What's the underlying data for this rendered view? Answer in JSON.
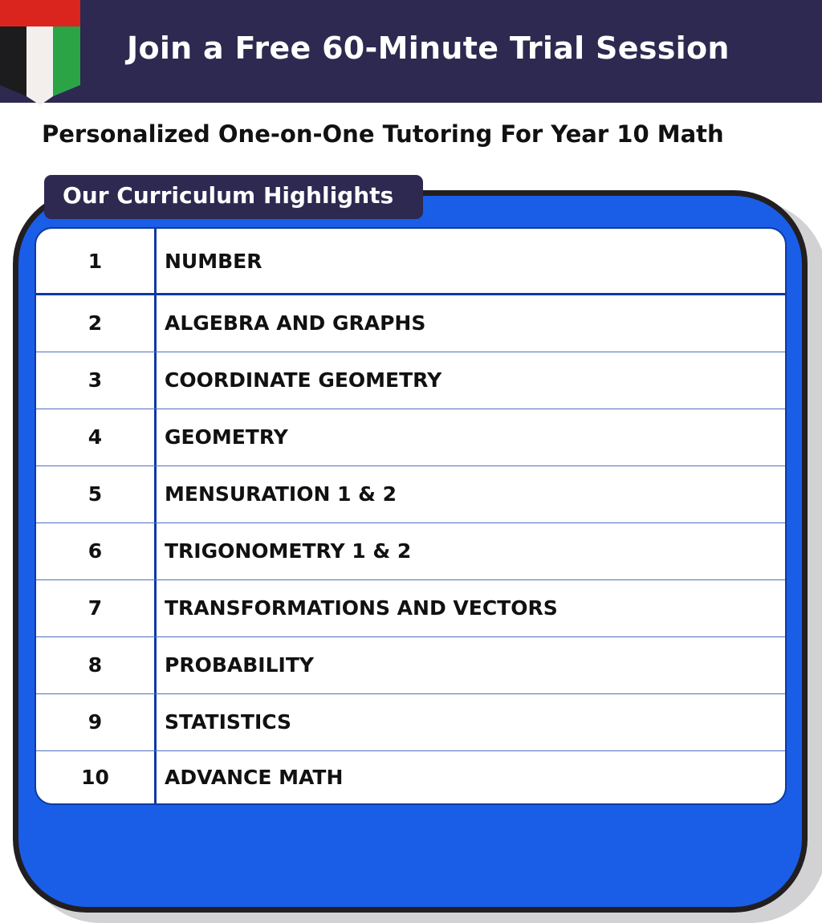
{
  "header": {
    "title": "Join a Free 60-Minute Trial Session"
  },
  "flag": {
    "icon": "uae-flag-icon",
    "colors": {
      "red": "#d9251e",
      "black": "#1c1c1e",
      "white": "#f2efec",
      "green": "#2ba446"
    }
  },
  "subtitle": "Personalized One-on-One Tutoring For Year 10 Math",
  "curriculum": {
    "tab_label": "Our Curriculum Highlights",
    "rows": [
      {
        "num": "1",
        "topic": "NUMBER"
      },
      {
        "num": "2",
        "topic": "ALGEBRA AND GRAPHS"
      },
      {
        "num": "3",
        "topic": "COORDINATE GEOMETRY"
      },
      {
        "num": "4",
        "topic": "GEOMETRY"
      },
      {
        "num": "5",
        "topic": "MENSURATION 1 & 2"
      },
      {
        "num": "6",
        "topic": "TRIGONOMETRY 1 & 2"
      },
      {
        "num": "7",
        "topic": "TRANSFORMATIONS AND VECTORS"
      },
      {
        "num": "8",
        "topic": "PROBABILITY"
      },
      {
        "num": "9",
        "topic": "STATISTICS"
      },
      {
        "num": "10",
        "topic": "ADVANCE MATH"
      }
    ]
  },
  "colors": {
    "navy": "#2d2950",
    "blue": "#1a5ee8",
    "line": "#0e3aa0"
  }
}
